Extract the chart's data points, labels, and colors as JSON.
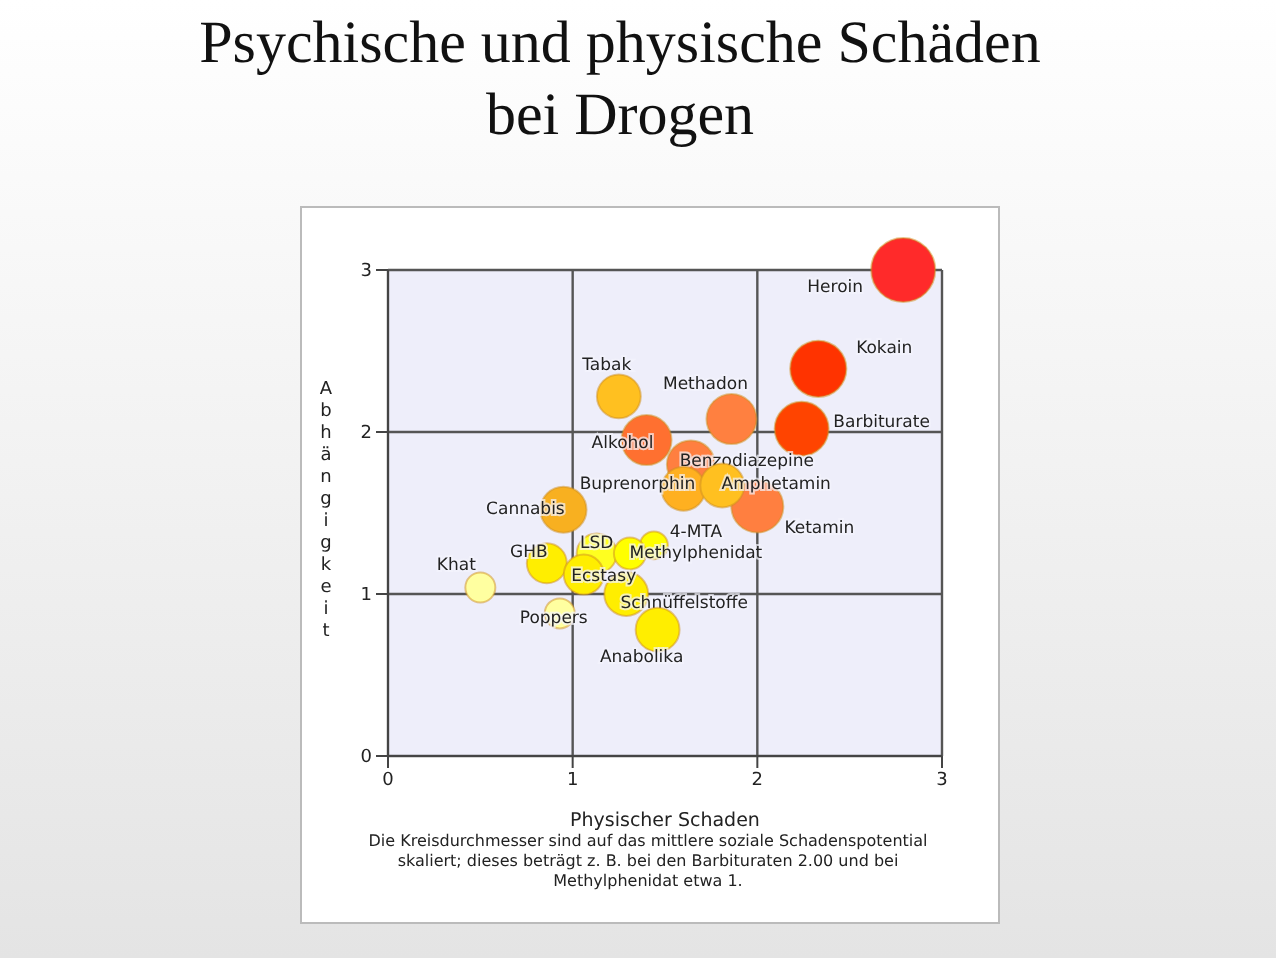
{
  "chart_data": {
    "type": "bubble",
    "title": "Psychische und physische Schäden bei Drogen",
    "xlabel": "Physischer Schaden",
    "ylabel": "Abhängigkeit",
    "xlim": [
      0,
      3
    ],
    "xticks": [
      0,
      1,
      2,
      3
    ],
    "ylim": [
      0,
      3
    ],
    "yticks": [
      0,
      1,
      2,
      3
    ],
    "grid": true,
    "marker": "circle",
    "series": [
      {
        "name": "Heroin",
        "color": "#ff2a2a",
        "x": [
          2.79
        ],
        "values": [
          3.0
        ],
        "sizes": [
          1
        ]
      },
      {
        "name": "Kokain",
        "color": "#ff3300",
        "x": [
          2.33
        ],
        "values": [
          2.39
        ],
        "sizes": [
          0.77
        ]
      },
      {
        "name": "Barbiturate",
        "color": "#ff4400",
        "x": [
          2.24
        ],
        "values": [
          2.02
        ],
        "sizes": [
          0.71
        ]
      },
      {
        "name": "Methadon",
        "color": "#ff8040",
        "x": [
          1.86
        ],
        "values": [
          2.08
        ],
        "sizes": [
          0.61
        ]
      },
      {
        "name": "Tabak",
        "color": "#ffc020",
        "x": [
          1.25
        ],
        "values": [
          2.22
        ],
        "sizes": [
          0.47
        ]
      },
      {
        "name": "Alkohol",
        "color": "#ff7030",
        "x": [
          1.4
        ],
        "values": [
          1.95
        ],
        "sizes": [
          0.61
        ]
      },
      {
        "name": "Benzodiazepine",
        "color": "#ff7f40",
        "x": [
          1.64
        ],
        "values": [
          1.8
        ],
        "sizes": [
          0.56
        ]
      },
      {
        "name": "Buprenorphin",
        "color": "#ffb020",
        "x": [
          1.6
        ],
        "values": [
          1.65
        ],
        "sizes": [
          0.47
        ]
      },
      {
        "name": "Ketamin",
        "color": "#ff7f40",
        "x": [
          2.0
        ],
        "values": [
          1.54
        ],
        "sizes": [
          0.66
        ]
      },
      {
        "name": "Amphetamin",
        "color": "#ffc020",
        "x": [
          1.81
        ],
        "values": [
          1.67
        ],
        "sizes": [
          0.47
        ]
      },
      {
        "name": "Cannabis",
        "color": "#f8b020",
        "x": [
          0.95
        ],
        "values": [
          1.52
        ],
        "sizes": [
          0.52
        ]
      },
      {
        "name": "4-MTA",
        "color": "#ffff00",
        "x": [
          1.44
        ],
        "values": [
          1.3
        ],
        "sizes": [
          0.19
        ]
      },
      {
        "name": "LSD",
        "color": "#ffff20",
        "x": [
          1.13
        ],
        "values": [
          1.25
        ],
        "sizes": [
          0.39
        ]
      },
      {
        "name": "Methylphenidat",
        "color": "#ffff00",
        "x": [
          1.31
        ],
        "values": [
          1.25
        ],
        "sizes": [
          0.25
        ]
      },
      {
        "name": "GHB",
        "color": "#ffee00",
        "x": [
          0.86
        ],
        "values": [
          1.19
        ],
        "sizes": [
          0.39
        ]
      },
      {
        "name": "Schnüffelstoffe",
        "color": "#ffee00",
        "x": [
          1.29
        ],
        "values": [
          1.0
        ],
        "sizes": [
          0.47
        ]
      },
      {
        "name": "Ecstasy",
        "color": "#ffee00",
        "x": [
          1.06
        ],
        "values": [
          1.12
        ],
        "sizes": [
          0.39
        ]
      },
      {
        "name": "Khat",
        "color": "#ffffa0",
        "x": [
          0.5
        ],
        "values": [
          1.04
        ],
        "sizes": [
          0.22
        ]
      },
      {
        "name": "Poppers",
        "color": "#ffffa0",
        "x": [
          0.93
        ],
        "values": [
          0.88
        ],
        "sizes": [
          0.22
        ]
      },
      {
        "name": "Anabolika",
        "color": "#ffee00",
        "x": [
          1.46
        ],
        "values": [
          0.78
        ],
        "sizes": [
          0.47
        ]
      }
    ],
    "annotations": [
      "Die Kreisdurchmesser sind auf das mittlere soziale Schadenspotential skaliert; dieses beträgt z. B. bei den Barbituraten 2.00 und bei Methylphenidat etwa 1."
    ]
  }
}
